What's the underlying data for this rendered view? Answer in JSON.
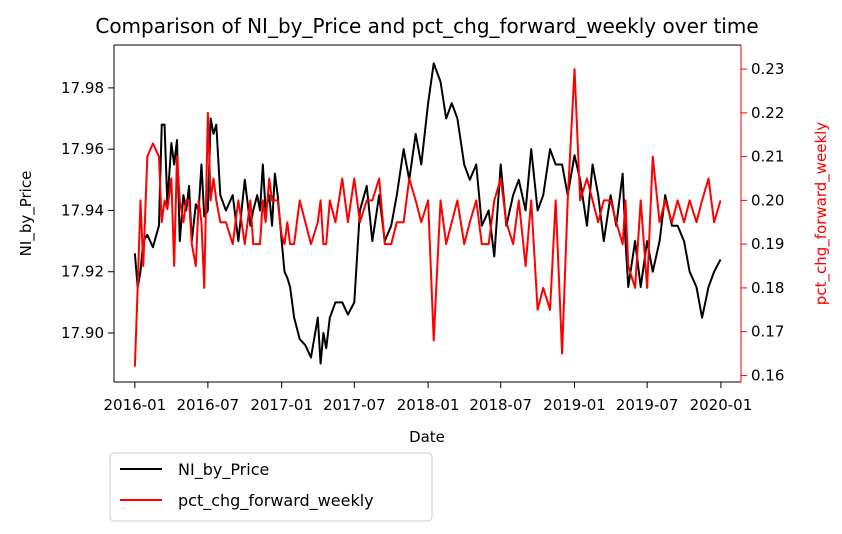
{
  "chart_data": {
    "type": "line",
    "title": "Comparison of NI_by_Price and pct_chg_forward_weekly over time",
    "xlabel": "Date",
    "ylabel_left": "NI_by_Price",
    "ylabel_right": "pct_chg_forward_weekly",
    "xlim": [
      "2015-11-10",
      "2020-02-20"
    ],
    "ylim_left": [
      17.884,
      17.994
    ],
    "ylim_right": [
      0.1585,
      0.2355
    ],
    "x_ticks": [
      "2016-01",
      "2016-07",
      "2017-01",
      "2017-07",
      "2018-01",
      "2018-07",
      "2019-01",
      "2019-07",
      "2020-01"
    ],
    "y_ticks_left": [
      "17.90",
      "17.92",
      "17.94",
      "17.96",
      "17.98"
    ],
    "y_ticks_right": [
      "0.16",
      "0.17",
      "0.18",
      "0.19",
      "0.20",
      "0.21",
      "0.22",
      "0.23"
    ],
    "grid": false,
    "legend_position": "below-left",
    "colors": {
      "left_series": "#000000",
      "right_series": "#ff0000",
      "right_axis": "#ff0000"
    },
    "series": [
      {
        "name": "NI_by_Price",
        "axis": "left",
        "x": [
          "2016-01-01",
          "2016-01-08",
          "2016-01-15",
          "2016-01-22",
          "2016-02-01",
          "2016-02-15",
          "2016-03-01",
          "2016-03-08",
          "2016-03-15",
          "2016-03-22",
          "2016-04-01",
          "2016-04-08",
          "2016-04-15",
          "2016-04-22",
          "2016-05-01",
          "2016-05-08",
          "2016-05-15",
          "2016-05-22",
          "2016-06-01",
          "2016-06-08",
          "2016-06-15",
          "2016-06-22",
          "2016-07-01",
          "2016-07-08",
          "2016-07-15",
          "2016-07-22",
          "2016-08-01",
          "2016-08-15",
          "2016-09-01",
          "2016-09-15",
          "2016-10-01",
          "2016-10-15",
          "2016-10-22",
          "2016-11-01",
          "2016-11-08",
          "2016-11-15",
          "2016-11-22",
          "2016-12-01",
          "2016-12-08",
          "2016-12-15",
          "2016-12-22",
          "2017-01-01",
          "2017-01-08",
          "2017-01-15",
          "2017-01-22",
          "2017-02-01",
          "2017-02-15",
          "2017-03-01",
          "2017-03-15",
          "2017-04-01",
          "2017-04-08",
          "2017-04-15",
          "2017-04-22",
          "2017-05-01",
          "2017-05-15",
          "2017-06-01",
          "2017-06-15",
          "2017-07-01",
          "2017-07-15",
          "2017-08-01",
          "2017-08-15",
          "2017-09-01",
          "2017-09-15",
          "2017-10-01",
          "2017-10-15",
          "2017-11-01",
          "2017-11-15",
          "2017-12-01",
          "2017-12-15",
          "2018-01-01",
          "2018-01-15",
          "2018-02-01",
          "2018-02-15",
          "2018-03-01",
          "2018-03-15",
          "2018-04-01",
          "2018-04-15",
          "2018-05-01",
          "2018-05-15",
          "2018-06-01",
          "2018-06-15",
          "2018-07-01",
          "2018-07-15",
          "2018-08-01",
          "2018-08-15",
          "2018-09-01",
          "2018-09-15",
          "2018-10-01",
          "2018-10-15",
          "2018-11-01",
          "2018-11-15",
          "2018-12-01",
          "2018-12-15",
          "2019-01-01",
          "2019-01-15",
          "2019-02-01",
          "2019-02-15",
          "2019-03-01",
          "2019-03-15",
          "2019-04-01",
          "2019-04-15",
          "2019-05-01",
          "2019-05-08",
          "2019-05-15",
          "2019-06-01",
          "2019-06-15",
          "2019-07-01",
          "2019-07-15",
          "2019-08-01",
          "2019-08-15",
          "2019-09-01",
          "2019-09-15",
          "2019-10-01",
          "2019-10-15",
          "2019-11-01",
          "2019-11-15",
          "2019-12-01",
          "2019-12-15",
          "2019-12-31"
        ],
        "values": [
          17.926,
          17.915,
          17.92,
          17.93,
          17.932,
          17.928,
          17.935,
          17.968,
          17.968,
          17.942,
          17.962,
          17.955,
          17.963,
          17.93,
          17.945,
          17.94,
          17.948,
          17.93,
          17.942,
          17.94,
          17.955,
          17.938,
          17.94,
          17.97,
          17.965,
          17.968,
          17.945,
          17.94,
          17.945,
          17.93,
          17.95,
          17.935,
          17.94,
          17.945,
          17.94,
          17.955,
          17.94,
          17.945,
          17.935,
          17.952,
          17.945,
          17.93,
          17.92,
          17.918,
          17.915,
          17.905,
          17.898,
          17.896,
          17.892,
          17.905,
          17.89,
          17.9,
          17.895,
          17.905,
          17.91,
          17.91,
          17.906,
          17.91,
          17.94,
          17.948,
          17.93,
          17.945,
          17.93,
          17.935,
          17.945,
          17.96,
          17.95,
          17.965,
          17.955,
          17.975,
          17.988,
          17.982,
          17.97,
          17.975,
          17.97,
          17.955,
          17.95,
          17.955,
          17.935,
          17.94,
          17.925,
          17.955,
          17.935,
          17.945,
          17.95,
          17.94,
          17.96,
          17.94,
          17.945,
          17.96,
          17.955,
          17.955,
          17.945,
          17.958,
          17.95,
          17.935,
          17.955,
          17.945,
          17.93,
          17.945,
          17.935,
          17.952,
          17.93,
          17.915,
          17.93,
          17.915,
          17.93,
          17.92,
          17.93,
          17.945,
          17.935,
          17.935,
          17.93,
          17.92,
          17.915,
          17.905,
          17.915,
          17.92,
          17.924
        ]
      },
      {
        "name": "pct_chg_forward_weekly",
        "axis": "right",
        "x": [
          "2016-01-01",
          "2016-01-08",
          "2016-01-15",
          "2016-01-22",
          "2016-02-01",
          "2016-02-15",
          "2016-03-01",
          "2016-03-08",
          "2016-03-15",
          "2016-03-22",
          "2016-04-01",
          "2016-04-08",
          "2016-04-15",
          "2016-04-22",
          "2016-05-01",
          "2016-05-08",
          "2016-05-15",
          "2016-05-22",
          "2016-06-01",
          "2016-06-08",
          "2016-06-15",
          "2016-06-22",
          "2016-07-01",
          "2016-07-08",
          "2016-07-15",
          "2016-07-22",
          "2016-08-01",
          "2016-08-15",
          "2016-09-01",
          "2016-09-15",
          "2016-10-01",
          "2016-10-15",
          "2016-10-22",
          "2016-11-01",
          "2016-11-08",
          "2016-11-15",
          "2016-11-22",
          "2016-12-01",
          "2016-12-08",
          "2016-12-15",
          "2016-12-22",
          "2017-01-01",
          "2017-01-08",
          "2017-01-15",
          "2017-01-22",
          "2017-02-01",
          "2017-02-15",
          "2017-03-01",
          "2017-03-15",
          "2017-04-01",
          "2017-04-08",
          "2017-04-15",
          "2017-04-22",
          "2017-05-01",
          "2017-05-15",
          "2017-06-01",
          "2017-06-15",
          "2017-07-01",
          "2017-07-15",
          "2017-08-01",
          "2017-08-15",
          "2017-09-01",
          "2017-09-15",
          "2017-10-01",
          "2017-10-15",
          "2017-11-01",
          "2017-11-15",
          "2017-12-01",
          "2017-12-15",
          "2018-01-01",
          "2018-01-15",
          "2018-02-01",
          "2018-02-15",
          "2018-03-01",
          "2018-03-15",
          "2018-04-01",
          "2018-04-15",
          "2018-05-01",
          "2018-05-15",
          "2018-06-01",
          "2018-06-15",
          "2018-07-01",
          "2018-07-15",
          "2018-08-01",
          "2018-08-15",
          "2018-09-01",
          "2018-09-15",
          "2018-10-01",
          "2018-10-15",
          "2018-11-01",
          "2018-11-15",
          "2018-12-01",
          "2018-12-15",
          "2019-01-01",
          "2019-01-15",
          "2019-02-01",
          "2019-02-15",
          "2019-03-01",
          "2019-03-15",
          "2019-04-01",
          "2019-04-15",
          "2019-05-01",
          "2019-05-08",
          "2019-05-15",
          "2019-06-01",
          "2019-06-15",
          "2019-07-01",
          "2019-07-15",
          "2019-08-01",
          "2019-08-15",
          "2019-09-01",
          "2019-09-15",
          "2019-10-01",
          "2019-10-15",
          "2019-11-01",
          "2019-11-15",
          "2019-12-01",
          "2019-12-15",
          "2019-12-31"
        ],
        "values": [
          0.162,
          0.18,
          0.2,
          0.185,
          0.21,
          0.213,
          0.21,
          0.195,
          0.2,
          0.198,
          0.205,
          0.185,
          0.21,
          0.2,
          0.195,
          0.2,
          0.2,
          0.19,
          0.185,
          0.2,
          0.195,
          0.18,
          0.22,
          0.2,
          0.205,
          0.2,
          0.195,
          0.195,
          0.19,
          0.2,
          0.19,
          0.2,
          0.19,
          0.19,
          0.19,
          0.2,
          0.195,
          0.205,
          0.2,
          0.2,
          0.2,
          0.192,
          0.19,
          0.195,
          0.19,
          0.19,
          0.2,
          0.195,
          0.19,
          0.195,
          0.2,
          0.19,
          0.19,
          0.2,
          0.195,
          0.205,
          0.195,
          0.205,
          0.195,
          0.2,
          0.2,
          0.205,
          0.19,
          0.19,
          0.195,
          0.195,
          0.205,
          0.2,
          0.195,
          0.2,
          0.168,
          0.2,
          0.19,
          0.195,
          0.2,
          0.19,
          0.195,
          0.2,
          0.19,
          0.19,
          0.2,
          0.205,
          0.195,
          0.19,
          0.2,
          0.185,
          0.2,
          0.175,
          0.18,
          0.175,
          0.2,
          0.165,
          0.2,
          0.23,
          0.2,
          0.205,
          0.2,
          0.195,
          0.2,
          0.2,
          0.195,
          0.19,
          0.2,
          0.185,
          0.18,
          0.2,
          0.18,
          0.21,
          0.195,
          0.2,
          0.195,
          0.2,
          0.195,
          0.2,
          0.195,
          0.2,
          0.205,
          0.195,
          0.2
        ]
      }
    ],
    "legend": [
      {
        "label": "NI_by_Price",
        "color": "#000000"
      },
      {
        "label": "pct_chg_forward_weekly",
        "color": "#ff0000"
      }
    ]
  }
}
